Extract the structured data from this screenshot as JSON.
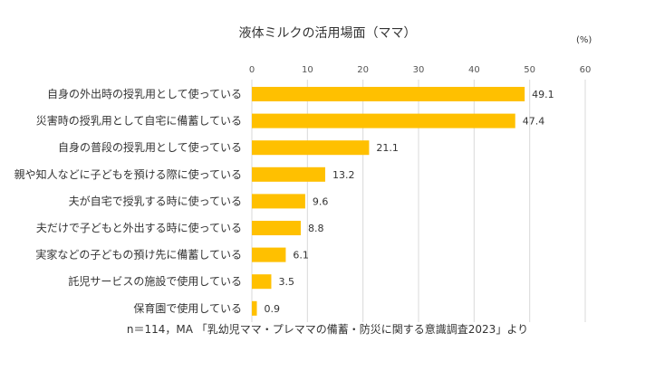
{
  "chart_data": {
    "type": "bar",
    "orientation": "horizontal",
    "title": "液体ミルクの活用場面（ママ）",
    "unit_label": "(%)",
    "note": "n＝114，MA 「乳幼児ママ・プレママの備蓄・防災に関する意識調査2023」より",
    "xlim": [
      0,
      60
    ],
    "ticks": [
      0,
      10,
      20,
      30,
      40,
      50,
      60
    ],
    "grid": true,
    "bar_color": "#FFC000",
    "categories": [
      "自身の外出時の授乳用として使っている",
      "災害時の授乳用として自宅に備蓄している",
      "自身の普段の授乳用として使っている",
      "親や知人などに子どもを預ける際に使っている",
      "夫が自宅で授乳する時に使っている",
      "夫だけで子どもと外出する時に使っている",
      "実家などの子どもの預け先に備蓄している",
      "託児サービスの施設で使用している",
      "保育園で使用している"
    ],
    "values": [
      49.1,
      47.4,
      21.1,
      13.2,
      9.6,
      8.8,
      6.1,
      3.5,
      0.9
    ],
    "value_labels": [
      "49.1",
      "47.4",
      "21.1",
      "13.2",
      "9.6",
      "8.8",
      "6.1",
      "3.5",
      "0.9"
    ]
  }
}
